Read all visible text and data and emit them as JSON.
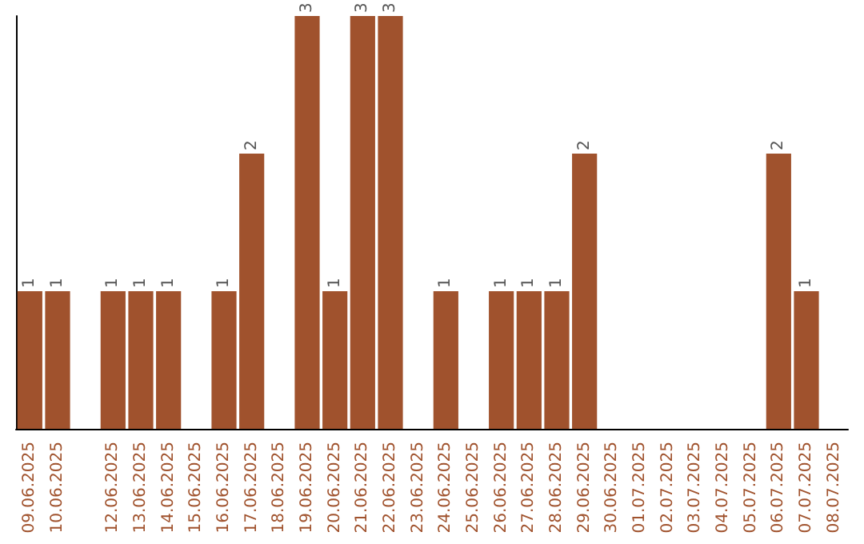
{
  "chart_data": {
    "type": "bar",
    "categories": [
      "09.06.2025",
      "10.06.2025",
      null,
      "12.06.2025",
      "13.06.2025",
      "14.06.2025",
      "15.06.2025",
      "16.06.2025",
      "17.06.2025",
      "18.06.2025",
      "19.06.2025",
      "20.06.2025",
      "21.06.2025",
      "22.06.2025",
      "23.06.2025",
      "24.06.2025",
      "25.06.2025",
      "26.06.2025",
      "27.06.2025",
      "28.06.2025",
      "29.06.2025",
      "30.06.2025",
      "01.07.2025",
      "02.07.2025",
      "03.07.2025",
      "04.07.2025",
      "05.07.2025",
      "06.07.2025",
      "07.07.2025",
      "08.07.2025"
    ],
    "values": [
      1,
      1,
      null,
      1,
      1,
      1,
      null,
      1,
      2,
      null,
      3,
      1,
      3,
      3,
      null,
      1,
      null,
      1,
      1,
      1,
      2,
      null,
      null,
      null,
      null,
      null,
      null,
      2,
      1,
      null
    ],
    "color": "#a0522d",
    "data_labels": true
  }
}
